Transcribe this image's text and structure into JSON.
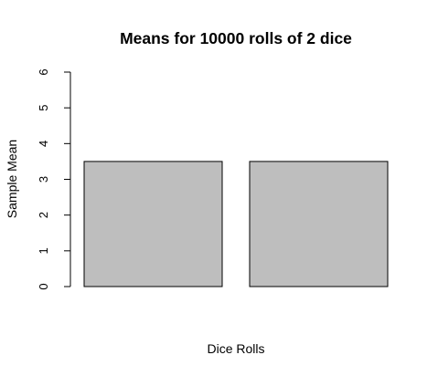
{
  "chart_data": {
    "type": "bar",
    "title": "Means for 10000 rolls of 2 dice",
    "xlabel": "Dice Rolls",
    "ylabel": "Sample Mean",
    "categories": [
      "",
      ""
    ],
    "values": [
      3.5,
      3.5
    ],
    "ylim": [
      0,
      6
    ],
    "yticks": [
      "0",
      "1",
      "2",
      "3",
      "4",
      "5",
      "6"
    ],
    "grid": false,
    "legend": "none",
    "colors": {
      "bar_fill": "#bebebe",
      "bar_stroke": "#000000",
      "axis": "#000000",
      "background": "#ffffff"
    }
  }
}
